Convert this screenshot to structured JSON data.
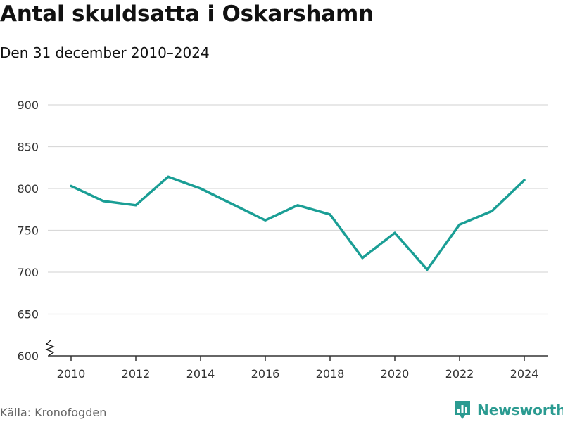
{
  "header": {
    "title": "Antal skuldsatta i Oskarshamn",
    "subtitle": "Den 31 december 2010–2024"
  },
  "footer": {
    "source": "Källa: Kronofogden",
    "brand": "Newsworthy",
    "brand_icon": "bar-chart-logo-icon"
  },
  "colors": {
    "line": "#1a9e95",
    "grid": "#d9d9d9",
    "axis": "#333333",
    "brand": "#2b9b91"
  },
  "chart_data": {
    "type": "line",
    "x": [
      2010,
      2011,
      2012,
      2013,
      2014,
      2015,
      2016,
      2017,
      2018,
      2019,
      2020,
      2021,
      2022,
      2023,
      2024
    ],
    "values": [
      803,
      785,
      780,
      814,
      800,
      781,
      762,
      780,
      769,
      717,
      747,
      703,
      757,
      773,
      810
    ],
    "xticks": [
      2010,
      2012,
      2014,
      2016,
      2018,
      2020,
      2022,
      2024
    ],
    "yticks": [
      600,
      650,
      700,
      750,
      800,
      850,
      900
    ],
    "ylim": [
      600,
      900
    ],
    "y_axis_break": true,
    "grid": true
  }
}
